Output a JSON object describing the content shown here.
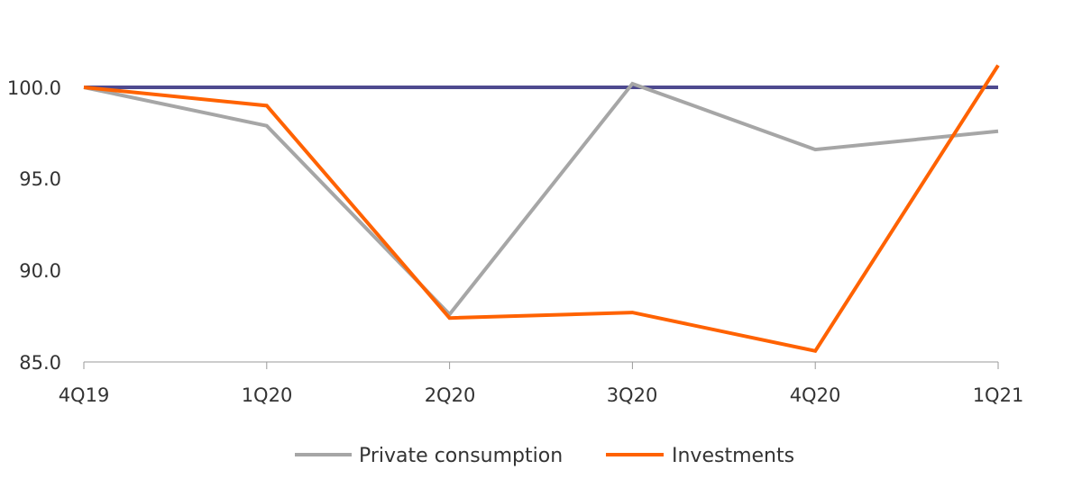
{
  "chart_data": {
    "type": "line",
    "categories": [
      "4Q19",
      "1Q20",
      "2Q20",
      "3Q20",
      "4Q20",
      "1Q21"
    ],
    "yticks": [
      "85.0",
      "90.0",
      "95.0",
      "100.0"
    ],
    "ytick_values": [
      85,
      90,
      95,
      100
    ],
    "ylim": [
      85,
      100
    ],
    "reference_line": {
      "value": 100,
      "color": "#4e4a8f"
    },
    "series": [
      {
        "name": "Private consumption",
        "color": "#a6a6a6",
        "values": [
          100.0,
          97.9,
          87.6,
          100.2,
          96.6,
          97.6
        ]
      },
      {
        "name": "Investments",
        "color": "#ff6200",
        "values": [
          100.0,
          99.0,
          87.4,
          87.7,
          85.6,
          101.2
        ]
      }
    ],
    "legend_position": "bottom-center",
    "grid": false
  }
}
